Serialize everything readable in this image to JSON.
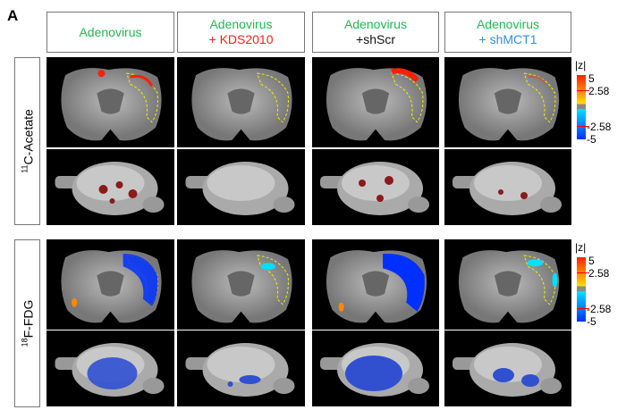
{
  "panel_label": "A",
  "columns": [
    {
      "line1": "Adenovirus",
      "line2": "",
      "line2_color": ""
    },
    {
      "line1": "Adenovirus",
      "line2": "+ KDS2010",
      "line2_color": "#ff2020"
    },
    {
      "line1": "Adenovirus",
      "line2": "+shScr",
      "line2_color": "#111111"
    },
    {
      "line1": "Adenovirus",
      "line2": "+ shMCT1",
      "line2_color": "#2f8fdc"
    }
  ],
  "line1_color": "#1db954",
  "rows": [
    {
      "label_sup": "11",
      "label": "C-Acetate",
      "signal": "positive"
    },
    {
      "label_sup": "18",
      "label": "F-FDG",
      "signal": "negative"
    }
  ],
  "colorbar": {
    "title": "|z|",
    "ticks": [
      "5",
      "2.58",
      "-2.58",
      "-5"
    ],
    "colors": {
      "pos_high": "#ff2000",
      "pos_low": "#ffe000",
      "neg_low": "#00e0ff",
      "neg_high": "#0030ff",
      "neutral": "#888888"
    }
  }
}
